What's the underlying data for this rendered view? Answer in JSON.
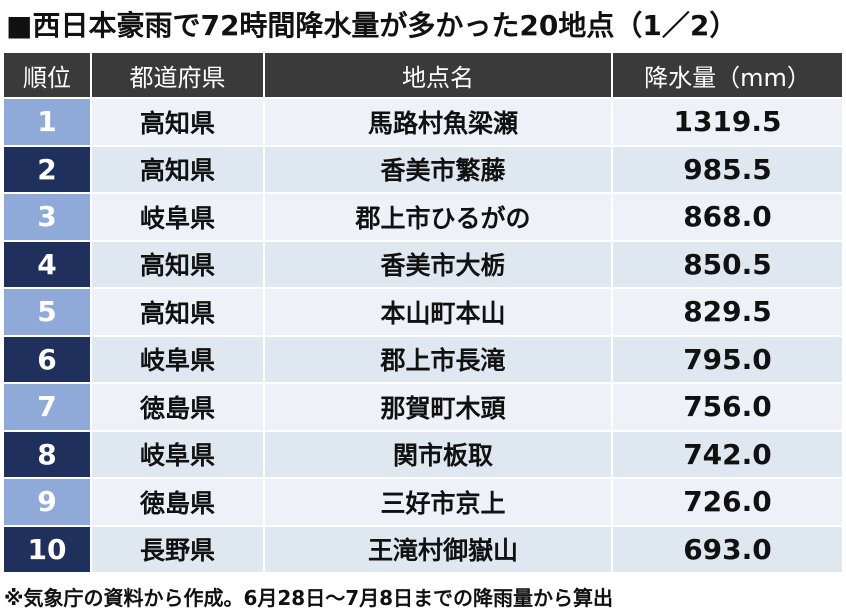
{
  "title": "■西日本豪雨で72時間降水量が多かった20地点（1／2）",
  "headers": [
    "順位",
    "都道府県",
    "地点名",
    "降水量（mm）"
  ],
  "rows": [
    {
      "rank": "1",
      "pref": "高知県",
      "place": "馬路村魚梁瀬",
      "amount": "1319.5"
    },
    {
      "rank": "2",
      "pref": "高知県",
      "place": "香美市繁藤",
      "amount": "985.5"
    },
    {
      "rank": "3",
      "pref": "岐阜県",
      "place": "郡上市ひるがの",
      "amount": "868.0"
    },
    {
      "rank": "4",
      "pref": "高知県",
      "place": "香美市大栃",
      "amount": "850.5"
    },
    {
      "rank": "5",
      "pref": "高知県",
      "place": "本山町本山",
      "amount": "829.5"
    },
    {
      "rank": "6",
      "pref": "岐阜県",
      "place": "郡上市長滝",
      "amount": "795.0"
    },
    {
      "rank": "7",
      "pref": "徳島県",
      "place": "那賀町木頭",
      "amount": "756.0"
    },
    {
      "rank": "8",
      "pref": "岐阜県",
      "place": "関市板取",
      "amount": "742.0"
    },
    {
      "rank": "9",
      "pref": "徳島県",
      "place": "三好市京上",
      "amount": "726.0"
    },
    {
      "rank": "10",
      "pref": "長野県",
      "place": "王滝村御嶽山",
      "amount": "693.0"
    }
  ],
  "note": "※気象庁の資料から作成。6月28日～7月8日までの降雨量から算出",
  "colors": {
    "header_bg": "#3a3a3a",
    "rank_light": "#8fa9d9",
    "rank_dark": "#1f305c",
    "row_light": "#eef2f8",
    "row_dark": "#dfe7f1"
  }
}
